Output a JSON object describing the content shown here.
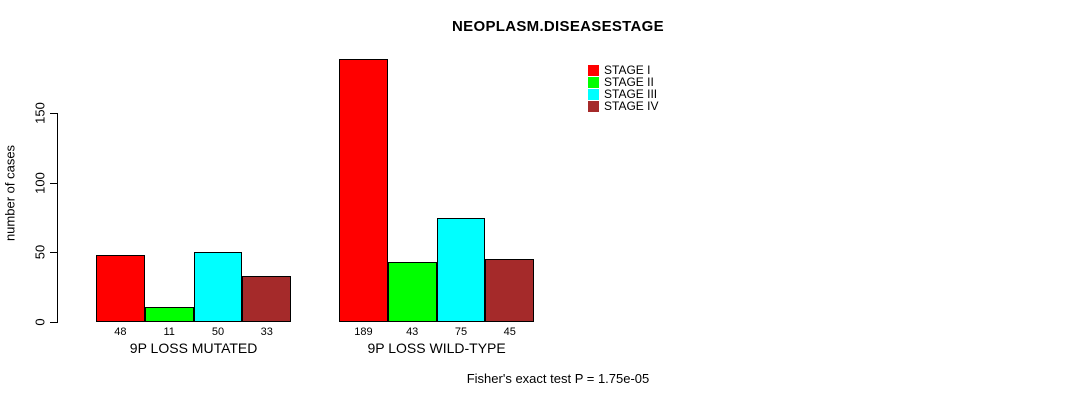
{
  "chart_data": {
    "type": "bar",
    "title": "NEOPLASM.DISEASESTAGE",
    "ylabel": "number of cases",
    "xlabel": "",
    "yticks": [
      0,
      50,
      100,
      150
    ],
    "ylim": [
      0,
      189
    ],
    "grid": false,
    "legend_position": "top-right",
    "categories": [
      "9P LOSS MUTATED",
      "9P LOSS WILD-TYPE"
    ],
    "series": [
      {
        "name": "STAGE I",
        "color": "#ff0000",
        "values": [
          48,
          189
        ]
      },
      {
        "name": "STAGE II",
        "color": "#00ff00",
        "values": [
          11,
          43
        ]
      },
      {
        "name": "STAGE III",
        "color": "#00ffff",
        "values": [
          50,
          75
        ]
      },
      {
        "name": "STAGE IV",
        "color": "#a52a2a",
        "values": [
          33,
          45
        ]
      }
    ],
    "bar_value_labels_shown": true,
    "annotation": "Fisher's exact test P = 1.75e-05"
  }
}
